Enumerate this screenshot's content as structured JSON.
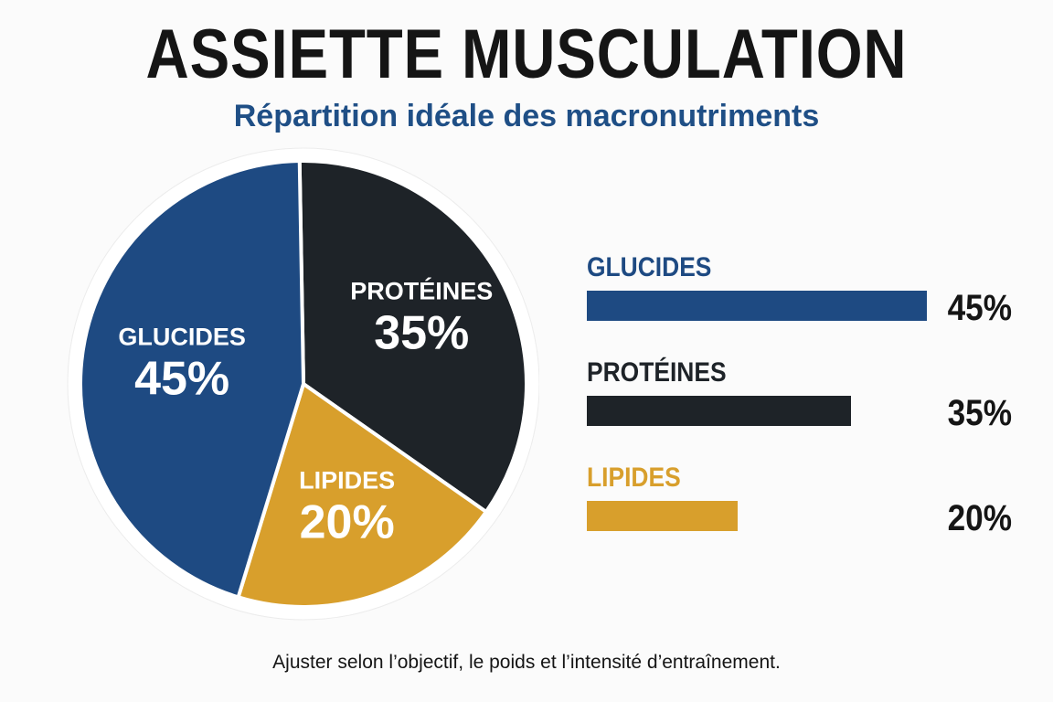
{
  "header": {
    "title": "ASSIETTE MUSCULATION",
    "subtitle": "Répartition idéale des macronutriments"
  },
  "chart_data": [
    {
      "type": "pie",
      "categories": [
        "GLUCIDES",
        "PROTÉINES",
        "LIPIDES"
      ],
      "values": [
        45,
        35,
        20
      ],
      "value_labels": [
        "45%",
        "35%",
        "20%"
      ],
      "colors": [
        "#1e4a82",
        "#1e2328",
        "#d89f2c"
      ],
      "legend": "none"
    },
    {
      "type": "bar",
      "orientation": "horizontal",
      "categories": [
        "GLUCIDES",
        "PROTÉINES",
        "LIPIDES"
      ],
      "values": [
        45,
        35,
        20
      ],
      "value_labels": [
        "45%",
        "35%",
        "20%"
      ],
      "colors": [
        "#1e4a82",
        "#1e2328",
        "#d89f2c"
      ],
      "label_colors": [
        "#1e4a82",
        "#1e2328",
        "#d89f2c"
      ],
      "xlim": [
        0,
        45
      ],
      "grid": false
    }
  ],
  "footnote": "Ajuster selon l’objectif, le poids et l’intensité d’entraînement."
}
